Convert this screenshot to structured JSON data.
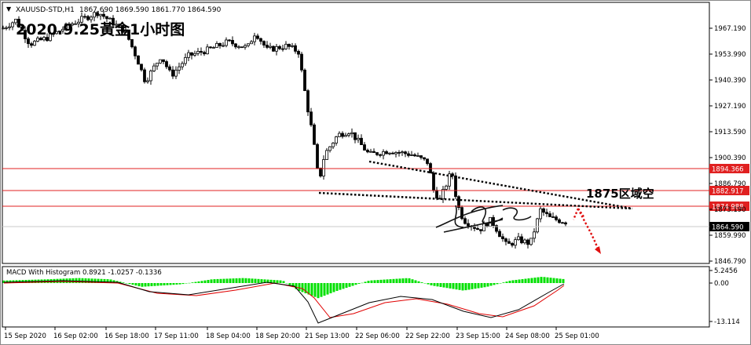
{
  "header": {
    "symbol_line": "XAUUSD-STD,H1",
    "ohlc": "1867.690 1869.590 1861.770 1864.590"
  },
  "annotations": {
    "chart_title": "2020.9.25黃金1小时图",
    "zone_label": "1875区域空"
  },
  "price_axis": {
    "ticks": [
      "1967.190",
      "1953.990",
      "1940.390",
      "1927.190",
      "1913.590",
      "1900.390",
      "1886.790",
      "1873.190",
      "1859.990",
      "1846.790"
    ]
  },
  "level_labels": [
    "1894.366",
    "1882.917",
    "1874.988",
    "1864.590"
  ],
  "macd": {
    "title": "MACD With Histogram 0.8921 -1.0257 -0.1336",
    "ticks": [
      "5.2456",
      "0.00",
      "-13.114"
    ]
  },
  "time_axis": {
    "labels": [
      "15 Sep 2020",
      "16 Sep 02:00",
      "16 Sep 18:00",
      "17 Sep 11:00",
      "18 Sep 04:00",
      "18 Sep 20:00",
      "21 Sep 13:00",
      "22 Sep 06:00",
      "22 Sep 22:00",
      "23 Sep 15:00",
      "24 Sep 08:00",
      "25 Sep 01:00"
    ]
  },
  "colors": {
    "level_line": "#e02020",
    "trend_line": "#000000",
    "arrow": "#e01010",
    "bull_candle": "#ffffff",
    "bear_candle": "#000000",
    "hist_up": "#00e000",
    "macd_line": "#000000",
    "signal_line": "#e00000"
  },
  "chart_data": {
    "type": "candlestick",
    "series": [
      {
        "name": "close",
        "x": [
          "15 Sep 2020",
          "16 Sep 02:00",
          "16 Sep 18:00",
          "17 Sep 11:00",
          "18 Sep 04:00",
          "18 Sep 20:00",
          "21 Sep 13:00",
          "22 Sep 06:00",
          "22 Sep 22:00",
          "23 Sep 15:00",
          "24 Sep 08:00",
          "25 Sep 01:00"
        ],
        "values": [
          1960,
          1962,
          1952,
          1948,
          1954,
          1952,
          1895,
          1900,
          1890,
          1860,
          1856,
          1866
        ]
      }
    ],
    "levels": [
      1894.366,
      1882.917,
      1874.988,
      1864.59
    ],
    "ylim": [
      1843,
      1975
    ]
  }
}
